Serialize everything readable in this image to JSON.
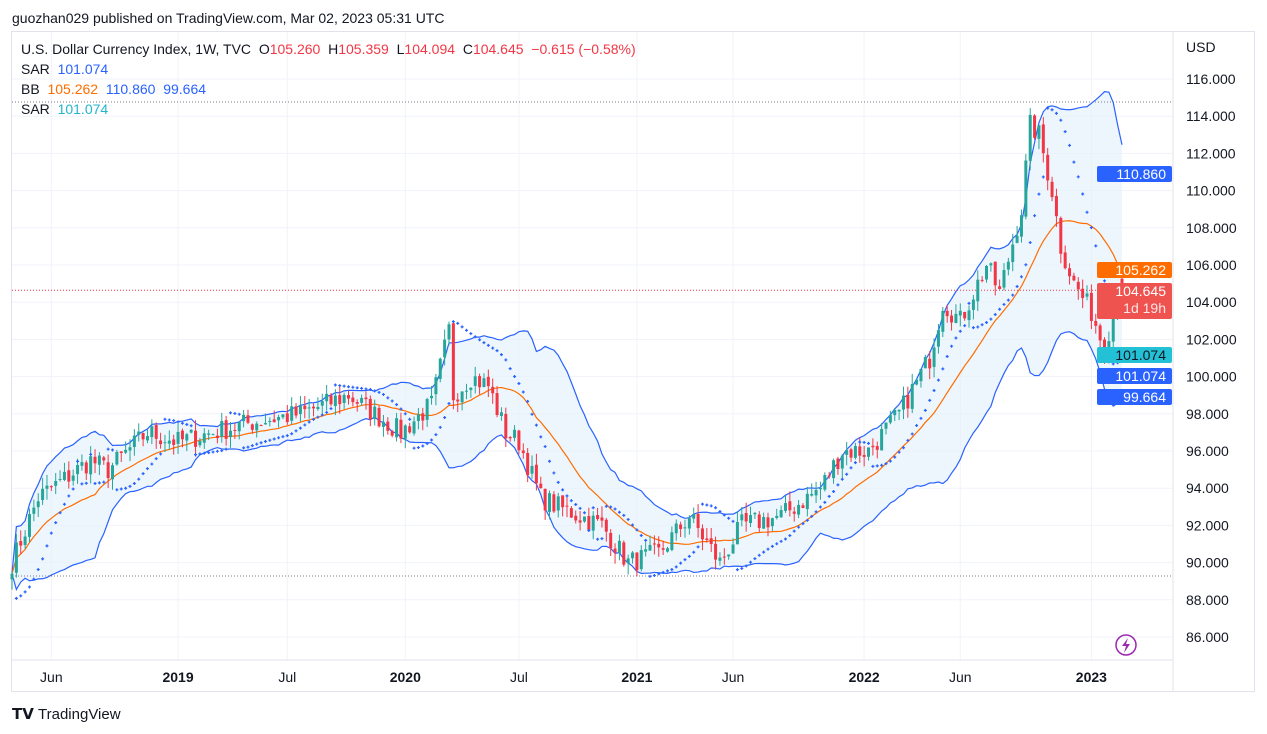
{
  "header": {
    "published": "guozhan029 published on TradingView.com, Mar 02, 2023 05:31 UTC"
  },
  "legend": {
    "symbol": "U.S. Dollar Currency Index, 1W, TVC",
    "o_label": "O",
    "o": "105.260",
    "h_label": "H",
    "h": "105.359",
    "l_label": "L",
    "l": "104.094",
    "c_label": "C",
    "c": "104.645",
    "change": "−0.615 (−0.58%)",
    "sar1_label": "SAR",
    "sar1": "101.074",
    "bb_label": "BB",
    "bb_basis": "105.262",
    "bb_upper": "110.860",
    "bb_lower": "99.664",
    "sar2_label": "SAR",
    "sar2": "101.074"
  },
  "price_tags": {
    "upper": "110.860",
    "basis": "105.262",
    "last": "104.645",
    "countdown": "1d 19h",
    "sar2": "101.074",
    "sar1": "101.074",
    "lower": "99.664"
  },
  "colors": {
    "up": "#26a69a",
    "down": "#f23645",
    "bb_band": "#2962ff",
    "bb_basis": "#ff6d00",
    "sar": "#2962ff",
    "fill": "#e3f0fb"
  },
  "footer": {
    "brand": "TradingView"
  },
  "chart_data": {
    "type": "candlestick",
    "title": "U.S. Dollar Currency Index, 1W, TVC",
    "ylabel": "USD",
    "ylim": [
      85,
      117
    ],
    "y_ticks": [
      "86.000",
      "88.000",
      "90.000",
      "92.000",
      "94.000",
      "96.000",
      "98.000",
      "100.000",
      "102.000",
      "104.000",
      "106.000",
      "108.000",
      "110.000",
      "112.000",
      "114.000",
      "116.000"
    ],
    "x_ticks": [
      {
        "label": "Jun",
        "week": 9
      },
      {
        "label": "2019",
        "week": 38
      },
      {
        "label": "Jul",
        "week": 63
      },
      {
        "label": "2020",
        "week": 90
      },
      {
        "label": "Jul",
        "week": 116
      },
      {
        "label": "2021",
        "week": 143
      },
      {
        "label": "Jun",
        "week": 165
      },
      {
        "label": "2022",
        "week": 195
      },
      {
        "label": "Jun",
        "week": 217
      },
      {
        "label": "2023",
        "week": 247
      }
    ],
    "close_anchors": [
      [
        0,
        90
      ],
      [
        6,
        93.5
      ],
      [
        18,
        95.5
      ],
      [
        22,
        95
      ],
      [
        31,
        97
      ],
      [
        38,
        96.5
      ],
      [
        54,
        97.5
      ],
      [
        66,
        98
      ],
      [
        77,
        99
      ],
      [
        89,
        97
      ],
      [
        96,
        98.5
      ],
      [
        100,
        102.5
      ],
      [
        101,
        99
      ],
      [
        105,
        100
      ],
      [
        109,
        99.5
      ],
      [
        113,
        97
      ],
      [
        116,
        96.5
      ],
      [
        121,
        93.5
      ],
      [
        125,
        93
      ],
      [
        135,
        92
      ],
      [
        141,
        90
      ],
      [
        148,
        90.5
      ],
      [
        155,
        92.5
      ],
      [
        162,
        90
      ],
      [
        167,
        92
      ],
      [
        176,
        92.5
      ],
      [
        185,
        94
      ],
      [
        190,
        96
      ],
      [
        196,
        96
      ],
      [
        203,
        98
      ],
      [
        210,
        101
      ],
      [
        213,
        104
      ],
      [
        217,
        103
      ],
      [
        223,
        106
      ],
      [
        226,
        104.5
      ],
      [
        231,
        109
      ],
      [
        233,
        113.5
      ],
      [
        235,
        113
      ],
      [
        238,
        110
      ],
      [
        240,
        107
      ],
      [
        243,
        105
      ],
      [
        247,
        103.5
      ],
      [
        250,
        101.5
      ],
      [
        252,
        103.5
      ],
      [
        254,
        104.645
      ]
    ],
    "indicators": [
      "Parabolic SAR",
      "Bollinger Bands (20,2)"
    ]
  }
}
